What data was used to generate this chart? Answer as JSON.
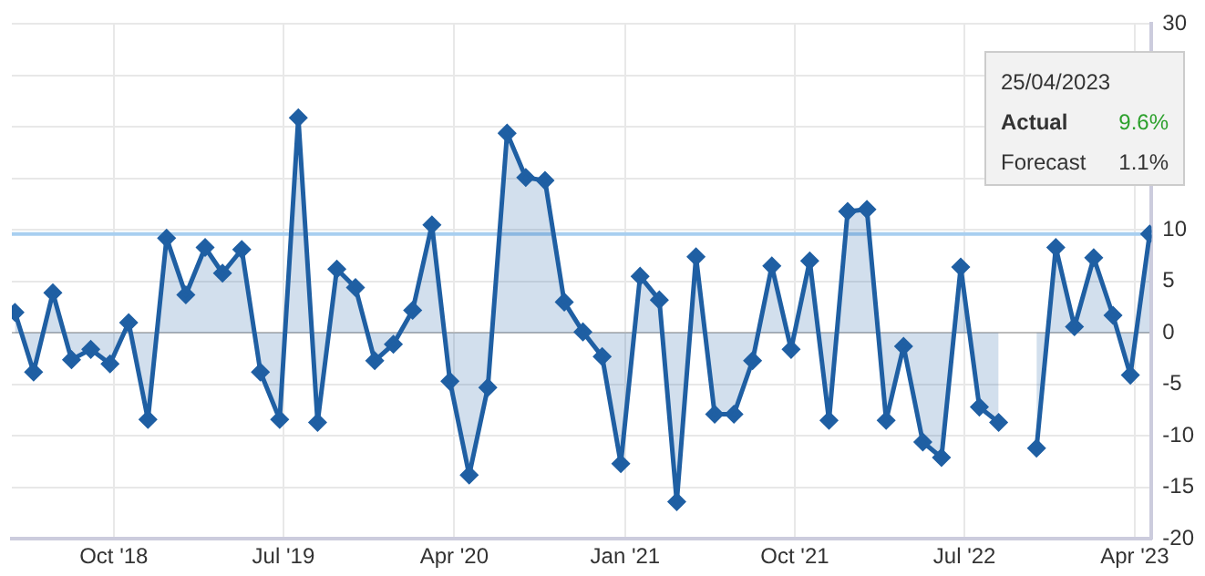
{
  "chart_data": {
    "type": "area",
    "x": [
      "2018-04-25",
      "2018-05-25",
      "2018-06-25",
      "2018-07-25",
      "2018-08-25",
      "2018-09-25",
      "2018-10-25",
      "2018-11-25",
      "2018-12-25",
      "2019-01-25",
      "2019-02-25",
      "2019-03-25",
      "2019-04-25",
      "2019-05-25",
      "2019-06-25",
      "2019-07-25",
      "2019-08-25",
      "2019-09-25",
      "2019-10-25",
      "2019-11-25",
      "2019-12-25",
      "2020-01-25",
      "2020-02-25",
      "2020-03-25",
      "2020-04-25",
      "2020-05-25",
      "2020-06-25",
      "2020-07-25",
      "2020-08-25",
      "2020-09-25",
      "2020-10-25",
      "2020-11-25",
      "2020-12-25",
      "2021-01-25",
      "2021-02-25",
      "2021-03-25",
      "2021-04-25",
      "2021-05-25",
      "2021-06-25",
      "2021-07-25",
      "2021-08-25",
      "2021-09-25",
      "2021-10-25",
      "2021-11-25",
      "2021-12-25",
      "2022-01-25",
      "2022-02-25",
      "2022-03-25",
      "2022-04-25",
      "2022-05-25",
      "2022-06-25",
      "2022-07-25",
      "2022-08-25",
      "2022-09-25",
      "2022-10-25",
      "2022-11-25",
      "2022-12-25",
      "2023-01-25",
      "2023-02-25",
      "2023-03-25",
      "2023-04-25"
    ],
    "series": [
      {
        "color": "#1f5fa3",
        "values": [
          2.0,
          -3.8,
          3.9,
          -2.6,
          -1.6,
          -3.0,
          1.0,
          -8.4,
          9.2,
          3.7,
          8.3,
          5.8,
          8.1,
          -3.8,
          -8.4,
          20.9,
          -8.7,
          6.2,
          4.4,
          -2.7,
          -1.1,
          2.2,
          10.5,
          -4.7,
          -13.8,
          -5.3,
          19.4,
          15.1,
          14.8,
          3.0,
          0.1,
          -2.3,
          -12.7,
          5.5,
          3.2,
          -16.4,
          7.4,
          -7.9,
          -7.9,
          -2.7,
          6.5,
          -1.6,
          7.0,
          -8.5,
          11.8,
          12.0,
          -8.5,
          -1.3,
          -10.6,
          -12.1,
          6.4,
          -7.2,
          -8.7,
          null,
          -11.2,
          8.3,
          0.6,
          7.3,
          1.7,
          -4.1,
          9.6
        ]
      }
    ],
    "xlim": [
      "2018-04-20",
      "2023-04-28"
    ],
    "xticks": [
      {
        "value": "2018-10-01",
        "label": "Oct '18"
      },
      {
        "value": "2019-07-01",
        "label": "Jul '19"
      },
      {
        "value": "2020-04-01",
        "label": "Apr '20"
      },
      {
        "value": "2021-01-01",
        "label": "Jan '21"
      },
      {
        "value": "2021-10-01",
        "label": "Oct '21"
      },
      {
        "value": "2022-07-01",
        "label": "Jul '22"
      },
      {
        "value": "2023-04-01",
        "label": "Apr '23"
      }
    ],
    "ylim": [
      -20,
      30
    ],
    "yticks": [
      -20,
      -15,
      -10,
      -5,
      0,
      5,
      10,
      {
        "value": 15,
        "label": null
      },
      {
        "value": 20,
        "label": null
      },
      {
        "value": 25,
        "label": null
      },
      30
    ],
    "ref_lines": [
      {
        "axis": "y",
        "value": 9.6,
        "color": "#a8cff0"
      }
    ],
    "annotations": [
      "25/04/2023",
      "Actual",
      "9.6%",
      "Forecast",
      "1.1%"
    ],
    "grid": true,
    "marker": "diamond",
    "legend": false
  }
}
